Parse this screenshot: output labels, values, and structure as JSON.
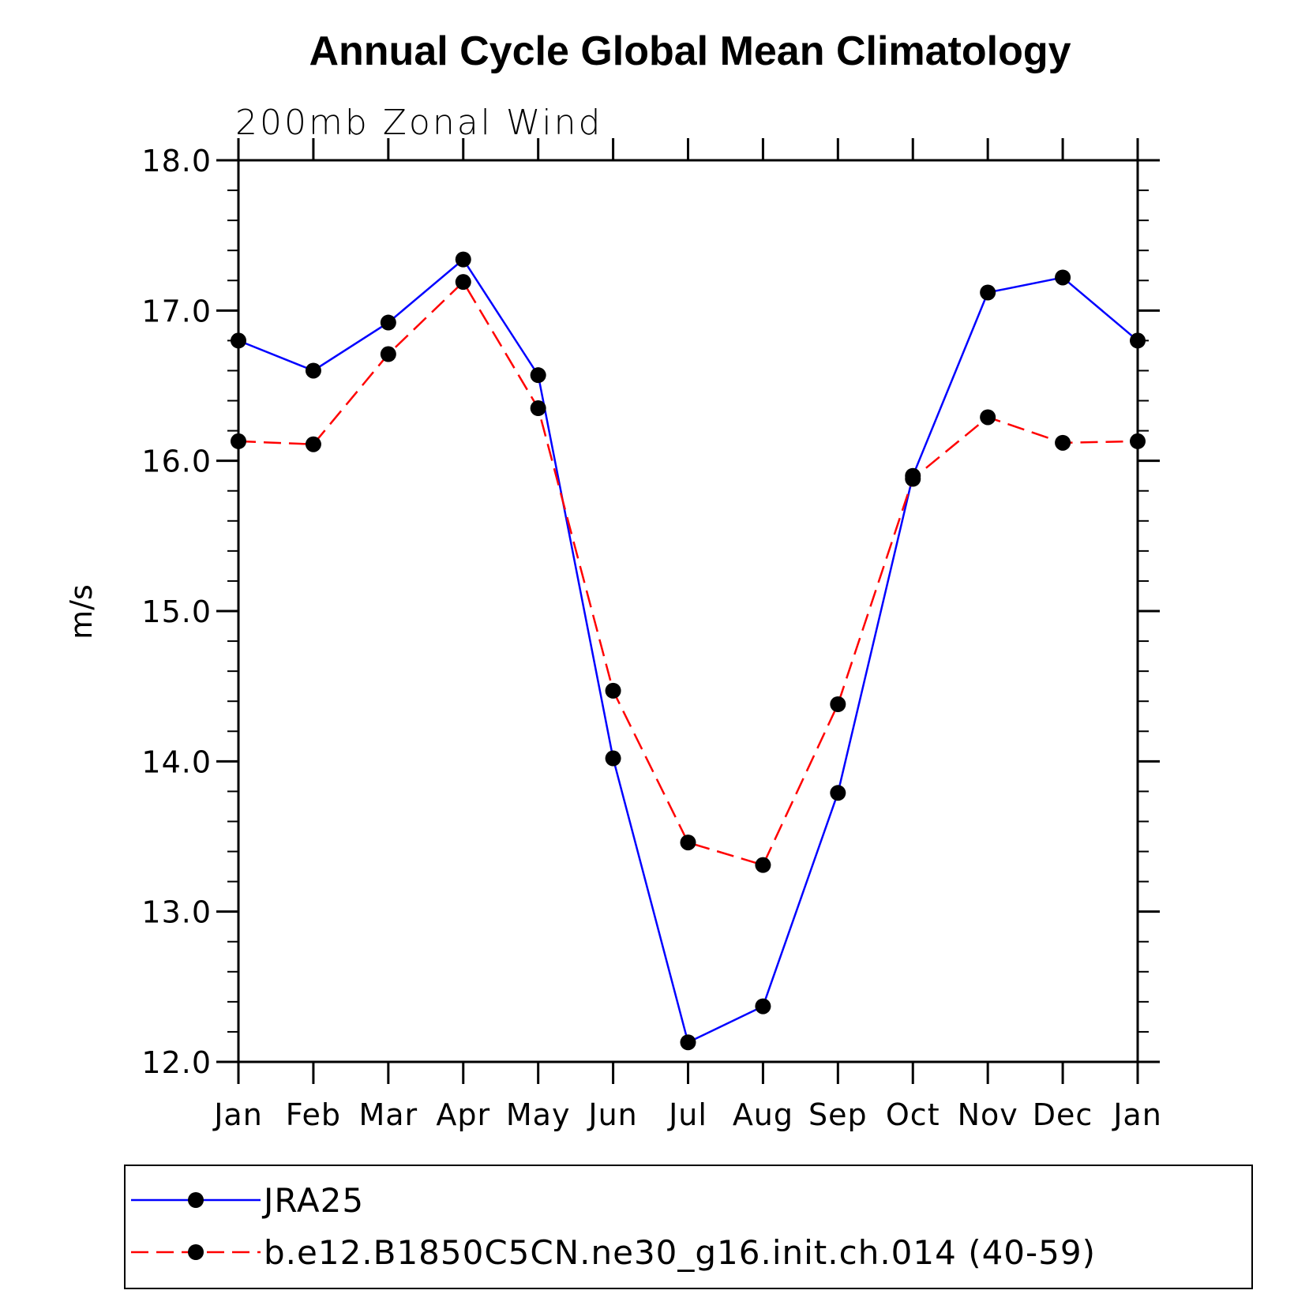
{
  "chart_data": {
    "type": "line",
    "title": "Annual Cycle Global Mean Climatology",
    "subtitle": "200mb Zonal Wind",
    "xlabel": "",
    "ylabel": "m/s",
    "categories": [
      "Jan",
      "Feb",
      "Mar",
      "Apr",
      "May",
      "Jun",
      "Jul",
      "Aug",
      "Sep",
      "Oct",
      "Nov",
      "Dec",
      "Jan"
    ],
    "ylim": [
      12.0,
      18.0
    ],
    "yticks": [
      "12.0",
      "13.0",
      "14.0",
      "15.0",
      "16.0",
      "17.0",
      "18.0"
    ],
    "series": [
      {
        "name": "JRA25",
        "color": "#0000ff",
        "style": "solid",
        "values": [
          16.8,
          16.6,
          16.92,
          17.34,
          16.57,
          14.02,
          12.13,
          12.37,
          13.79,
          15.9,
          17.12,
          17.22,
          16.8
        ]
      },
      {
        "name": "b.e12.B1850C5CN.ne30_g16.init.ch.014 (40-59)",
        "color": "#ff0000",
        "style": "dashed",
        "values": [
          16.13,
          16.11,
          16.71,
          17.19,
          16.35,
          14.47,
          13.46,
          13.31,
          14.38,
          15.88,
          16.29,
          16.12,
          16.13
        ]
      }
    ],
    "legend_position": "bottom"
  }
}
